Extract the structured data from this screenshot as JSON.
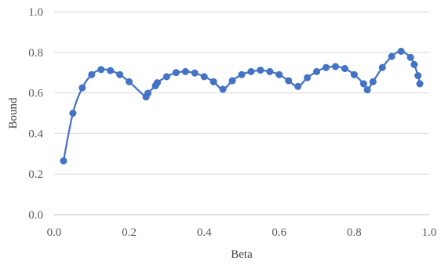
{
  "chart_data": {
    "type": "scatter",
    "title": "",
    "xlabel": "Beta",
    "ylabel": "Bound",
    "xlim": [
      0,
      1
    ],
    "ylim": [
      0,
      1
    ],
    "xticks": [
      0,
      0.2,
      0.4,
      0.6,
      0.8,
      1
    ],
    "yticks": [
      0,
      0.2,
      0.4,
      0.6,
      0.8,
      1
    ],
    "xtick_labels": [
      "0.0",
      "0.2",
      "0.4",
      "0.6",
      "0.8",
      "1.0"
    ],
    "ytick_labels": [
      "0.0",
      "0.2",
      "0.4",
      "0.6",
      "0.8",
      "1.0"
    ],
    "grid": "horizontal",
    "legend": "none",
    "series": [
      {
        "color": "#4472c4",
        "marker": "circle",
        "line": "smooth",
        "x": [
          0.025,
          0.05,
          0.075,
          0.1,
          0.125,
          0.15,
          0.175,
          0.2,
          0.245,
          0.25,
          0.27,
          0.275,
          0.3,
          0.325,
          0.35,
          0.375,
          0.4,
          0.425,
          0.45,
          0.475,
          0.5,
          0.525,
          0.55,
          0.575,
          0.6,
          0.625,
          0.65,
          0.675,
          0.7,
          0.725,
          0.75,
          0.775,
          0.8,
          0.825,
          0.835,
          0.85,
          0.875,
          0.9,
          0.925,
          0.95,
          0.96,
          0.97,
          0.975
        ],
        "y": [
          0.265,
          0.5,
          0.625,
          0.69,
          0.715,
          0.71,
          0.69,
          0.655,
          0.58,
          0.598,
          0.635,
          0.65,
          0.68,
          0.7,
          0.705,
          0.698,
          0.68,
          0.655,
          0.618,
          0.66,
          0.69,
          0.705,
          0.712,
          0.705,
          0.69,
          0.66,
          0.632,
          0.675,
          0.705,
          0.725,
          0.73,
          0.72,
          0.69,
          0.645,
          0.615,
          0.655,
          0.725,
          0.78,
          0.805,
          0.775,
          0.74,
          0.685,
          0.645
        ]
      }
    ]
  }
}
